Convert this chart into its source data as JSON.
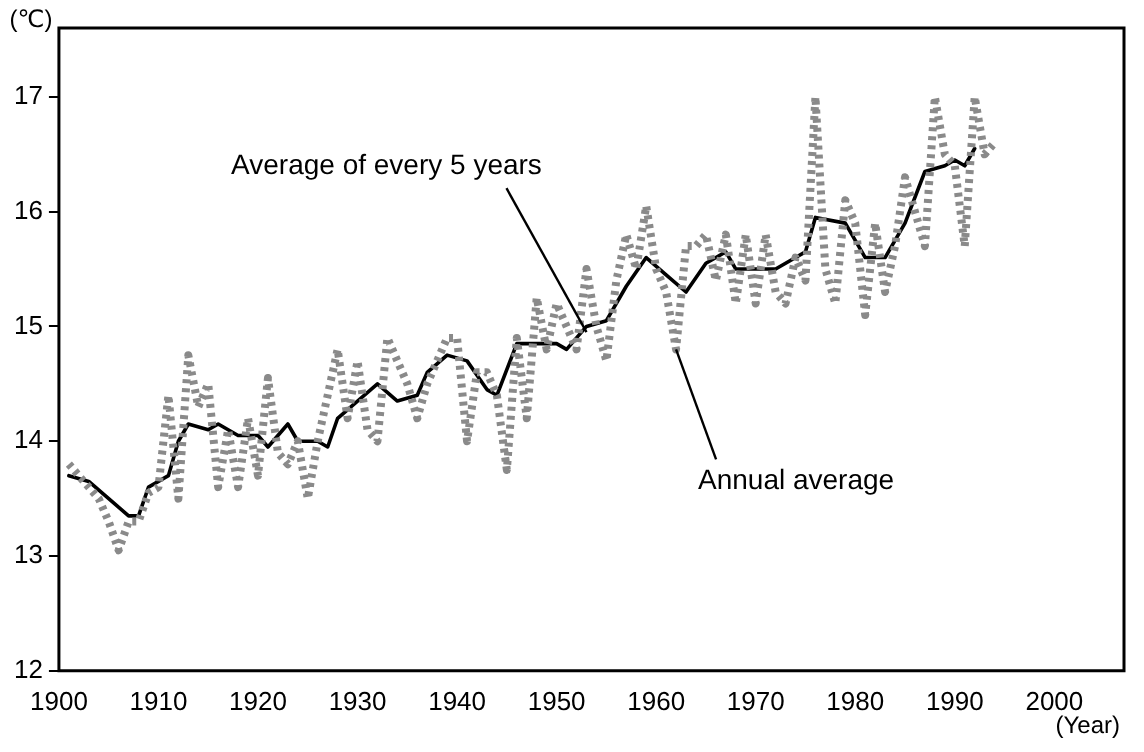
{
  "chart_data": {
    "type": "line",
    "ylabel": "(℃)",
    "xlabel": "(Year)",
    "xlim": [
      1900,
      2007
    ],
    "xticks": [
      1900,
      1910,
      1920,
      1930,
      1940,
      1950,
      1960,
      1970,
      1980,
      1990,
      2000
    ],
    "ylim": [
      12,
      17.6
    ],
    "yticks": [
      12,
      13,
      14,
      15,
      16,
      17
    ],
    "grid": false,
    "legend": false,
    "marker": "none",
    "series": [
      {
        "color": "#8a8a8a",
        "line_style": "dotted",
        "x": [
          1901,
          1902,
          1903,
          1904,
          1905,
          1906,
          1907,
          1908,
          1909,
          1910,
          1911,
          1912,
          1913,
          1914,
          1915,
          1916,
          1917,
          1918,
          1919,
          1920,
          1921,
          1922,
          1923,
          1924,
          1925,
          1926,
          1927,
          1928,
          1929,
          1930,
          1931,
          1932,
          1933,
          1934,
          1935,
          1936,
          1937,
          1938,
          1939,
          1940,
          1941,
          1942,
          1943,
          1944,
          1945,
          1946,
          1947,
          1948,
          1949,
          1950,
          1951,
          1952,
          1953,
          1954,
          1955,
          1956,
          1957,
          1958,
          1959,
          1960,
          1961,
          1962,
          1963,
          1964,
          1965,
          1966,
          1967,
          1968,
          1969,
          1970,
          1971,
          1972,
          1973,
          1974,
          1975,
          1976,
          1977,
          1978,
          1979,
          1980,
          1981,
          1982,
          1983,
          1984,
          1985,
          1986,
          1987,
          1988,
          1989,
          1990,
          1991,
          1992,
          1993,
          1994
        ],
        "values": [
          13.8,
          13.7,
          13.6,
          13.5,
          13.3,
          13.05,
          13.3,
          13.3,
          13.55,
          13.6,
          14.4,
          13.5,
          14.75,
          14.3,
          14.5,
          13.6,
          14.1,
          13.6,
          14.2,
          13.7,
          14.55,
          13.9,
          13.8,
          14.0,
          13.5,
          14.0,
          14.4,
          14.8,
          14.2,
          14.7,
          14.1,
          14.0,
          14.9,
          14.7,
          14.5,
          14.2,
          14.5,
          14.7,
          14.9,
          14.9,
          14.0,
          14.6,
          14.6,
          14.4,
          13.75,
          14.9,
          14.2,
          15.25,
          14.8,
          15.2,
          15.0,
          14.8,
          15.5,
          15.0,
          14.7,
          15.4,
          15.8,
          15.5,
          16.05,
          15.5,
          15.3,
          14.8,
          15.7,
          15.7,
          15.8,
          15.4,
          15.8,
          15.2,
          15.8,
          15.2,
          15.8,
          15.3,
          15.2,
          15.6,
          15.4,
          17.0,
          15.5,
          15.2,
          16.1,
          15.9,
          15.1,
          15.9,
          15.3,
          15.7,
          16.3,
          16.0,
          15.7,
          17.0,
          16.5,
          16.4,
          15.7,
          17.0,
          16.5,
          16.6
        ]
      },
      {
        "color": "#000000",
        "line_style": "solid",
        "x": [
          1901,
          1903,
          1905,
          1907,
          1908,
          1909,
          1911,
          1912,
          1913,
          1915,
          1916,
          1918,
          1920,
          1921,
          1923,
          1924,
          1926,
          1927,
          1928,
          1930,
          1932,
          1934,
          1936,
          1937,
          1939,
          1941,
          1943,
          1944,
          1946,
          1948,
          1950,
          1951,
          1953,
          1955,
          1957,
          1959,
          1961,
          1963,
          1965,
          1967,
          1968,
          1970,
          1972,
          1975,
          1976,
          1979,
          1981,
          1983,
          1985,
          1987,
          1989,
          1990,
          1991,
          1992
        ],
        "values": [
          13.7,
          13.65,
          13.5,
          13.35,
          13.35,
          13.6,
          13.7,
          14.0,
          14.15,
          14.1,
          14.15,
          14.05,
          14.05,
          13.95,
          14.15,
          14.0,
          14.0,
          13.95,
          14.2,
          14.35,
          14.5,
          14.35,
          14.4,
          14.6,
          14.75,
          14.7,
          14.45,
          14.4,
          14.85,
          14.85,
          14.85,
          14.8,
          15.0,
          15.05,
          15.35,
          15.6,
          15.45,
          15.3,
          15.55,
          15.65,
          15.5,
          15.5,
          15.5,
          15.65,
          15.95,
          15.9,
          15.6,
          15.6,
          15.9,
          16.35,
          16.4,
          16.45,
          16.4,
          16.55
        ]
      }
    ],
    "annotations": [
      {
        "text": "Average of every 5 years",
        "x": 1953,
        "y": 14.95
      },
      {
        "text": "Annual average",
        "x": 1962,
        "y": 14.8
      }
    ]
  }
}
